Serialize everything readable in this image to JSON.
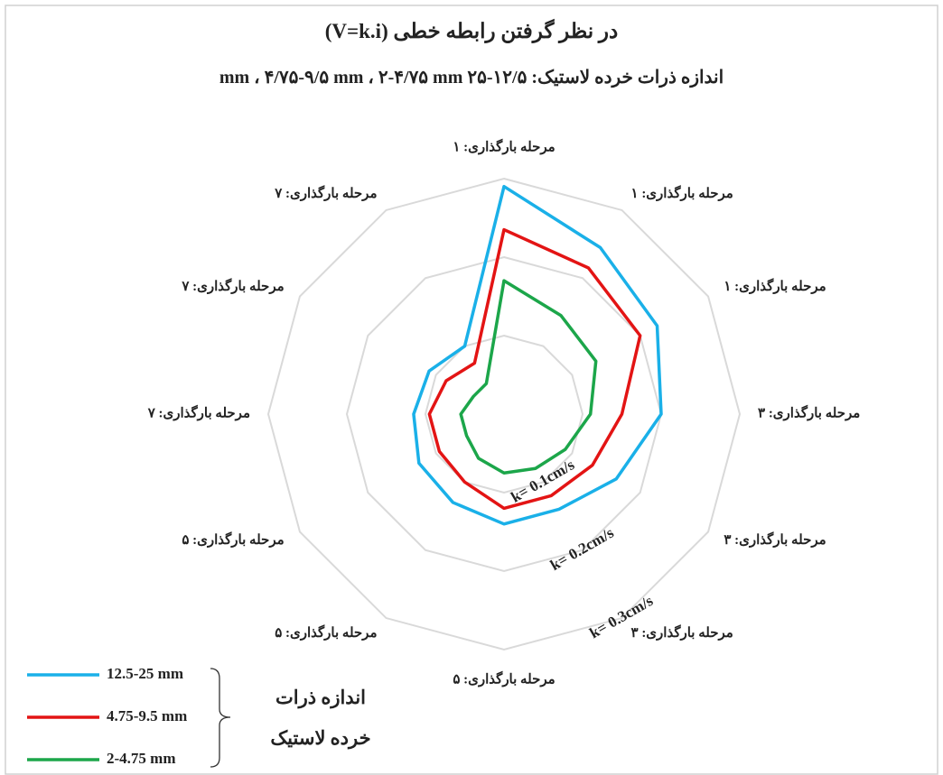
{
  "chart_data": {
    "type": "radar",
    "title": "در نظر گرفتن رابطه خطی (V=k.i)",
    "subtitle": "اندازه ذرات خرده لاستیک: ۱۲/۵-۲۵ mm ، ۴/۷۵-۹/۵ mm ، ۲-۴/۷۵ mm",
    "categories": [
      "مرحله بارگذاری: ۱",
      "مرحله بارگذاری: ۱",
      "مرحله بارگذاری: ۱",
      "مرحله بارگذاری: ۳",
      "مرحله بارگذاری: ۳",
      "مرحله بارگذاری: ۳",
      "مرحله بارگذاری: ۵",
      "مرحله بارگذاری: ۵",
      "مرحله بارگذاری: ۵",
      "مرحله بارگذاری: ۷",
      "مرحله بارگذاری: ۷",
      "مرحله بارگذاری: ۷"
    ],
    "series": [
      {
        "name": "12.5-25 mm",
        "color": "#1ab0e8",
        "values": [
          0.29,
          0.245,
          0.225,
          0.2,
          0.165,
          0.14,
          0.14,
          0.13,
          0.125,
          0.115,
          0.11,
          0.1
        ]
      },
      {
        "name": "4.75-9.5 mm",
        "color": "#e31414",
        "values": [
          0.235,
          0.215,
          0.2,
          0.15,
          0.13,
          0.12,
          0.12,
          0.1,
          0.095,
          0.095,
          0.085,
          0.075
        ]
      },
      {
        "name": "2-4.75 mm",
        "color": "#1ca64a",
        "values": [
          0.17,
          0.145,
          0.135,
          0.11,
          0.09,
          0.08,
          0.075,
          0.065,
          0.055,
          0.055,
          0.045,
          0.045
        ]
      }
    ],
    "ylim": [
      0,
      0.3
    ],
    "yticks": [
      {
        "value": 0.1,
        "label": "k= 0.1cm/s"
      },
      {
        "value": 0.2,
        "label": "k= 0.2cm/s"
      },
      {
        "value": 0.3,
        "label": "k= 0.3cm/s"
      }
    ],
    "grid": true,
    "legend_title": [
      "اندازه ذرات",
      "خرده لاستیک"
    ],
    "legend": "bottom-left"
  }
}
